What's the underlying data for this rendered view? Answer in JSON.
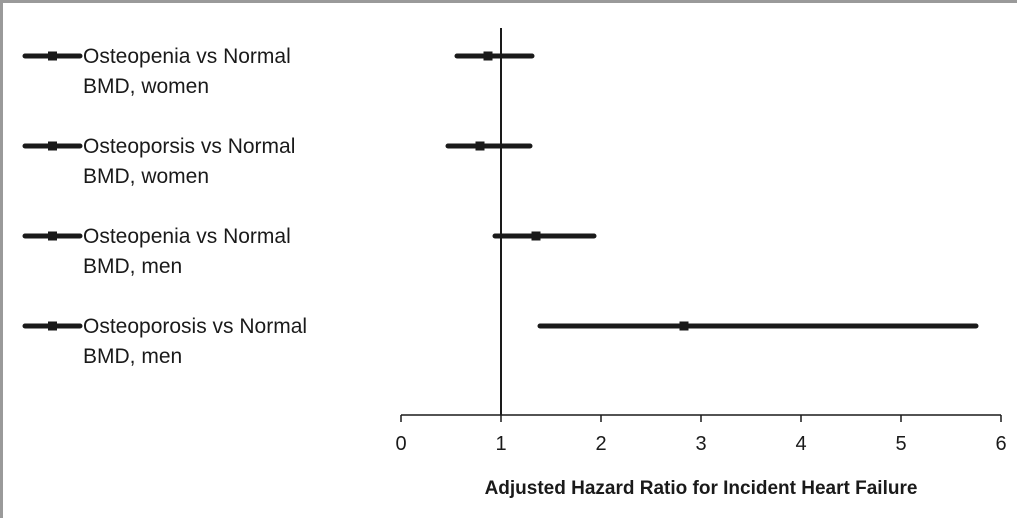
{
  "chart_data": {
    "type": "forest",
    "xlabel": "Adjusted Hazard Ratio for Incident Heart Failure",
    "xlim": [
      0,
      6
    ],
    "xticks": [
      "0",
      "1",
      "2",
      "3",
      "4",
      "5",
      "6"
    ],
    "reference_line": 1,
    "color": "#1a1a1a",
    "series": [
      {
        "name": [
          "Osteopenia vs Normal",
          "BMD, women"
        ],
        "estimate": 0.87,
        "lower": 0.56,
        "upper": 1.31
      },
      {
        "name": [
          "Osteoporsis vs Normal",
          "BMD, women"
        ],
        "estimate": 0.79,
        "lower": 0.47,
        "upper": 1.29
      },
      {
        "name": [
          "Osteopenia  vs Normal",
          "BMD, men"
        ],
        "estimate": 1.35,
        "lower": 0.94,
        "upper": 1.93
      },
      {
        "name": [
          "Osteoporosis vs Normal",
          "BMD, men"
        ],
        "estimate": 2.83,
        "lower": 1.39,
        "upper": 5.75
      }
    ]
  }
}
